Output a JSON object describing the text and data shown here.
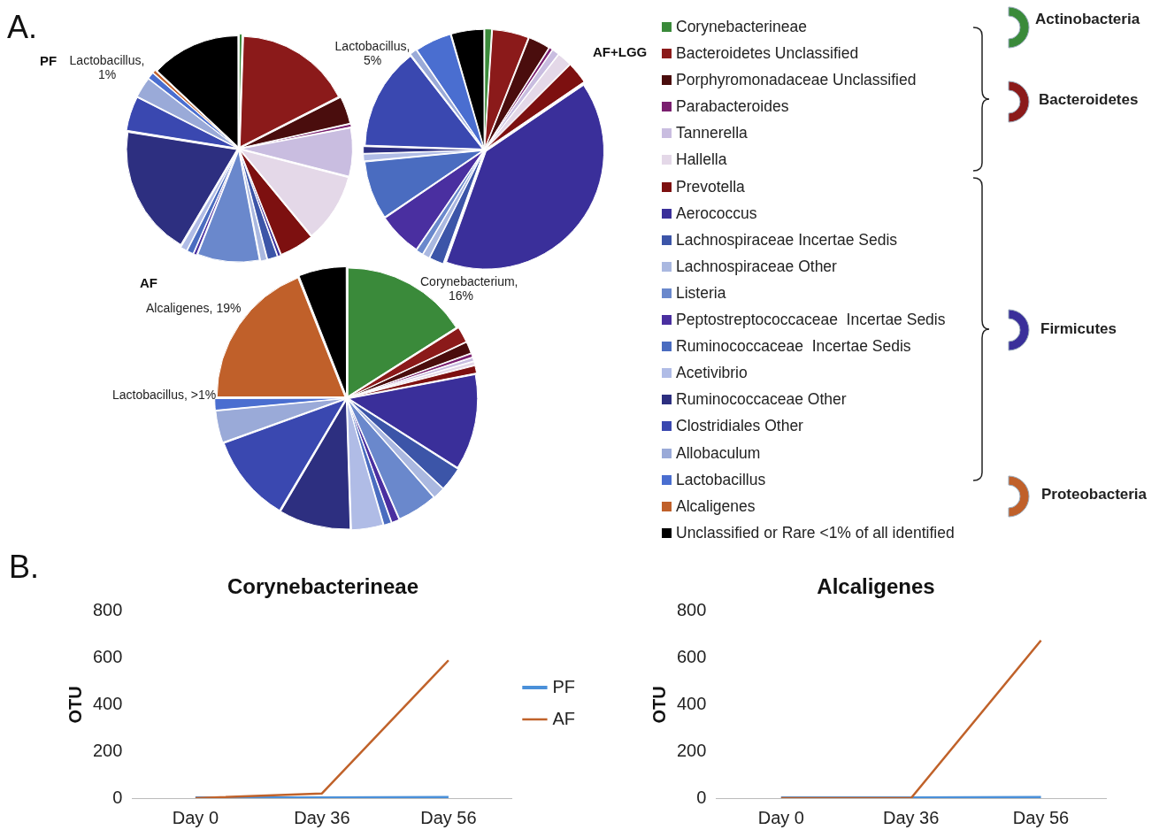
{
  "chart_data": [
    {
      "type": "pie",
      "title": "PF",
      "categories": [
        "Corynebacterineae",
        "Bacteroidetes Unclassified",
        "Porphyromonadaceae Unclassified",
        "Parabacteroides",
        "Tannerella",
        "Hallella",
        "Prevotella",
        "Aerococcus",
        "Lachnospiraceae Incertae Sedis",
        "Lachnospiraceae Other",
        "Listeria",
        "Peptostreptococcaceae  Incertae Sedis",
        "Ruminococcaceae  Incertae Sedis",
        "Acetivibrio",
        "Ruminococcaceae Other",
        "Clostridiales Other",
        "Allobaculum",
        "Lactobacillus",
        "Alcaligenes",
        "Unclassified or Rare <1% of all identified"
      ],
      "values": [
        0.5,
        17,
        4,
        0.5,
        7,
        10,
        5,
        0.5,
        1.5,
        1,
        9,
        0.5,
        1,
        1,
        19,
        5,
        3,
        1,
        0.5,
        13
      ],
      "colors": [
        "#3a8a3a",
        "#8b1a1a",
        "#4a0d0d",
        "#7a1f6f",
        "#c9bde0",
        "#e4d8e8",
        "#7d1010",
        "#3a2f9a",
        "#3c55a8",
        "#aab8e0",
        "#6a88cc",
        "#4a2fa0",
        "#4a6cc0",
        "#b0bce6",
        "#2d2f80",
        "#3a48b0",
        "#9aaad8",
        "#4a6ed0",
        "#c0602a",
        "#000000"
      ],
      "legend": "right",
      "annotations": [
        "A.",
        "Lactobacillus, 1%",
        "Actinobacteria",
        "Bacteroidetes",
        "Firmicutes",
        "Proteobacteria"
      ]
    },
    {
      "type": "pie",
      "title": "AF+LGG",
      "categories": [
        null,
        null,
        null,
        null,
        null,
        null,
        null,
        null,
        null,
        null,
        null,
        null,
        null,
        null,
        null,
        null,
        null,
        null,
        null,
        null
      ],
      "values": [
        1,
        5,
        3,
        0.5,
        1,
        2,
        3,
        40,
        2,
        1,
        1,
        6,
        8,
        1,
        1,
        14,
        1,
        5,
        0,
        4.5
      ],
      "colors": [
        "#3a8a3a",
        "#8b1a1a",
        "#4a0d0d",
        "#7a1f6f",
        "#c9bde0",
        "#e4d8e8",
        "#7d1010",
        "#3a2f9a",
        "#3c55a8",
        "#aab8e0",
        "#6a88cc",
        "#4a2fa0",
        "#4a6cc0",
        "#b0bce6",
        "#2d2f80",
        "#3a48b0",
        "#9aaad8",
        "#4a6ed0",
        "#c0602a",
        "#000000"
      ],
      "annotations": [
        "Lactobacillus, 5%"
      ]
    },
    {
      "type": "pie",
      "title": "AF",
      "categories": [
        null,
        null,
        null,
        null,
        null,
        null,
        null,
        null,
        null,
        null,
        null,
        null,
        null,
        null,
        null,
        null,
        null,
        null,
        null,
        null
      ],
      "values": [
        16,
        2,
        1.5,
        0.5,
        0.5,
        0.5,
        1,
        12,
        3,
        1.5,
        5,
        1,
        1,
        4,
        9,
        11,
        4,
        1.5,
        19,
        6
      ],
      "colors": [
        "#3a8a3a",
        "#8b1a1a",
        "#4a0d0d",
        "#7a1f6f",
        "#c9bde0",
        "#e4d8e8",
        "#7d1010",
        "#3a2f9a",
        "#3c55a8",
        "#aab8e0",
        "#6a88cc",
        "#4a2fa0",
        "#4a6cc0",
        "#b0bce6",
        "#2d2f80",
        "#3a48b0",
        "#9aaad8",
        "#4a6ed0",
        "#c0602a",
        "#000000"
      ],
      "annotations": [
        "Corynebacterium, 16%",
        "Alcaligenes, 19%",
        "Lactobacillus, >1%"
      ]
    },
    {
      "type": "line",
      "title": "Corynebacterineae",
      "ylabel": "OTU",
      "categories": [
        "Day 0",
        "Day 36",
        "Day 56"
      ],
      "series": [
        {
          "name": "PF",
          "color": "#4a90d9",
          "values": [
            0,
            0,
            2
          ]
        },
        {
          "name": "AF",
          "color": "#c0622a",
          "values": [
            0,
            20,
            590
          ]
        }
      ],
      "ylim": [
        0,
        800
      ],
      "yticks": [
        0,
        200,
        400,
        600,
        800
      ],
      "legend": "right",
      "marker": "none",
      "annotations": [
        "B."
      ]
    },
    {
      "type": "line",
      "title": "Alcaligenes",
      "ylabel": "OTU",
      "categories": [
        "Day 0",
        "Day 36",
        "Day 56"
      ],
      "series": [
        {
          "color": "#4a90d9",
          "values": [
            0,
            0,
            2
          ]
        },
        {
          "color": "#c0622a",
          "values": [
            0,
            0,
            675
          ]
        }
      ],
      "ylim": [
        0,
        800
      ],
      "yticks": [
        0,
        200,
        400,
        600,
        800
      ],
      "marker": "none"
    }
  ]
}
